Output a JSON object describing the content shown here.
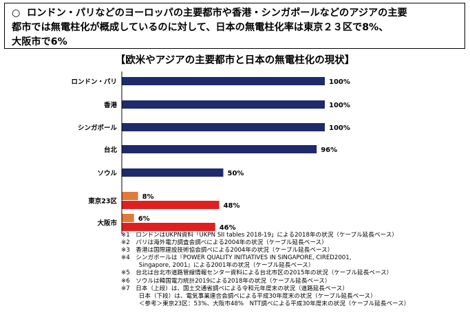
{
  "headline": {
    "mark": "○",
    "lines": [
      "ロンドン・パリなどのヨーロッパの主要都市や香港・シンガポールなどのアジアの主要",
      "都市では無電柱化が概成しているのに対して、日本の無電柱化率は東京２３区で8%、",
      "大阪市で6%"
    ]
  },
  "chart_data": {
    "type": "bar",
    "orientation": "horizontal",
    "title": "【欧米やアジアの主要都市と日本の無電柱化の現状】",
    "unit": "%",
    "xlim": [
      0,
      100
    ],
    "grid": false,
    "categories": [
      "ロンドン・パリ",
      "香港",
      "シンガポール",
      "台北",
      "ソウル",
      "東京23区",
      "大阪市"
    ],
    "bars": [
      {
        "category": "ロンドン・パリ",
        "value": 100,
        "label": "100%",
        "color": "#1f2a6b"
      },
      {
        "category": "香港",
        "value": 100,
        "label": "100%",
        "color": "#1f2a6b"
      },
      {
        "category": "シンガポール",
        "value": 100,
        "label": "100%",
        "color": "#1f2a6b"
      },
      {
        "category": "台北",
        "value": 96,
        "label": "96%",
        "color": "#1f2a6b"
      },
      {
        "category": "ソウル",
        "value": 50,
        "label": "50%",
        "color": "#1f2a6b"
      },
      {
        "category": "東京23区",
        "value": 8,
        "label": "8%",
        "color": "#e07a3a"
      },
      {
        "category": "東京23区",
        "value": 48,
        "label": "48%",
        "color": "#e02020"
      },
      {
        "category": "大阪市",
        "value": 6,
        "label": "6%",
        "color": "#e07a3a"
      },
      {
        "category": "大阪市",
        "value": 46,
        "label": "46%",
        "color": "#e02020"
      }
    ]
  },
  "notes": [
    "※1　ロンドンはUKPN資料「UKPN SII tables 2018-19」による2018年の状況（ケーブル延長ベース）",
    "※2　パリは海外電力調査会調べによる2004年の状況（ケーブル延長ベース）",
    "※3　香港は国際建設技術協会調べによる2004年の状況（ケーブル延長ベース）",
    "※4　シンガポールは『POWER QUALITY INITIATIVES IN SINGAPORE, CIRED2001,",
    "　　　Singapore, 2001』による2001年の状況（ケーブル延長ベース）",
    "※5　台北は台北市道路管線情報センター資料による台北市区の2015年の状況（ケーブル延長ベース）",
    "※6　ソウルは韓国電力統計2019による2018年の状況（ケーブル延長ベース）",
    "※7　日本（上段）は、国土交通省調べによる令和元年度末の状況（道路延長ベース）",
    "　　　日本（下段）は、電気事業連合会調べによる平成30年度末の状況（ケーブル延長ベース）",
    "　　　＜参考＞東京23区：53%、大阪市48%　NTT調べによる平成30年度末の状況（ケーブル延長ベース）"
  ]
}
